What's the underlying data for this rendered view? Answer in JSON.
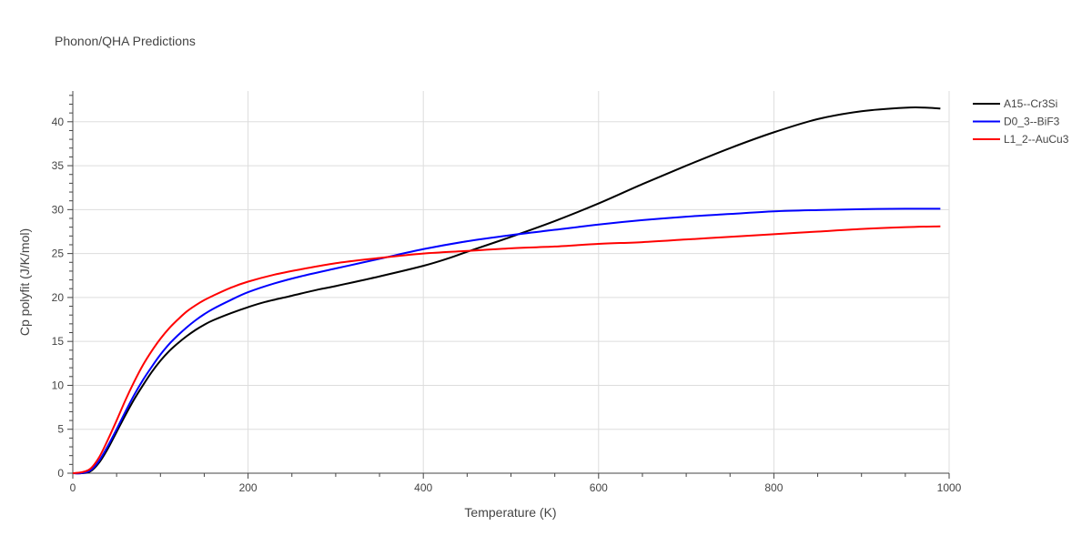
{
  "chart_data": {
    "type": "line",
    "title": "Phonon/QHA Predictions",
    "xlabel": "Temperature (K)",
    "ylabel": "Cp polyfit (J/K/mol)",
    "xlim": [
      0,
      1000
    ],
    "ylim": [
      0,
      43.5
    ],
    "xticks": [
      0,
      200,
      400,
      600,
      800,
      1000
    ],
    "yticks": [
      0,
      5,
      10,
      15,
      20,
      25,
      30,
      35,
      40
    ],
    "grid": true,
    "legend_position": "top-right",
    "series": [
      {
        "name": "A15--Cr3Si",
        "color": "#000000",
        "x": [
          0,
          10,
          20,
          30,
          40,
          50,
          60,
          70,
          80,
          90,
          100,
          110,
          120,
          130,
          140,
          150,
          160,
          180,
          200,
          220,
          250,
          280,
          300,
          350,
          400,
          430,
          450,
          500,
          550,
          600,
          650,
          700,
          750,
          800,
          850,
          900,
          950,
          975,
          990
        ],
        "y": [
          0,
          0,
          0.2,
          1.2,
          2.8,
          4.7,
          6.6,
          8.4,
          10.0,
          11.5,
          12.8,
          13.9,
          14.8,
          15.6,
          16.3,
          16.9,
          17.4,
          18.2,
          18.9,
          19.5,
          20.2,
          20.9,
          21.3,
          22.4,
          23.6,
          24.5,
          25.2,
          26.9,
          28.7,
          30.7,
          32.9,
          35.0,
          37.0,
          38.8,
          40.3,
          41.2,
          41.6,
          41.6,
          41.5
        ]
      },
      {
        "name": "D0_3--BiF3",
        "color": "#0000ff",
        "x": [
          0,
          10,
          20,
          30,
          40,
          50,
          60,
          70,
          80,
          90,
          100,
          110,
          120,
          130,
          140,
          150,
          160,
          180,
          200,
          230,
          260,
          300,
          350,
          400,
          450,
          500,
          550,
          600,
          650,
          700,
          750,
          800,
          850,
          900,
          950,
          990
        ],
        "y": [
          0,
          0,
          0.3,
          1.4,
          3.1,
          5.0,
          7.0,
          8.9,
          10.6,
          12.1,
          13.5,
          14.7,
          15.7,
          16.6,
          17.4,
          18.1,
          18.7,
          19.7,
          20.6,
          21.6,
          22.4,
          23.3,
          24.4,
          25.5,
          26.4,
          27.1,
          27.7,
          28.3,
          28.8,
          29.2,
          29.5,
          29.8,
          29.95,
          30.05,
          30.1,
          30.1
        ]
      },
      {
        "name": "L1_2--AuCu3",
        "color": "#ff0000",
        "x": [
          0,
          10,
          20,
          30,
          40,
          50,
          60,
          70,
          80,
          90,
          100,
          110,
          120,
          130,
          140,
          150,
          160,
          180,
          200,
          230,
          260,
          300,
          350,
          400,
          450,
          500,
          550,
          600,
          650,
          700,
          750,
          800,
          850,
          900,
          950,
          990
        ],
        "y": [
          0,
          0.1,
          0.5,
          1.8,
          3.8,
          6.0,
          8.3,
          10.4,
          12.3,
          13.9,
          15.3,
          16.5,
          17.5,
          18.4,
          19.1,
          19.7,
          20.2,
          21.1,
          21.8,
          22.6,
          23.2,
          23.9,
          24.5,
          25.0,
          25.3,
          25.6,
          25.8,
          26.1,
          26.3,
          26.6,
          26.9,
          27.2,
          27.5,
          27.8,
          28.0,
          28.1
        ]
      }
    ]
  }
}
